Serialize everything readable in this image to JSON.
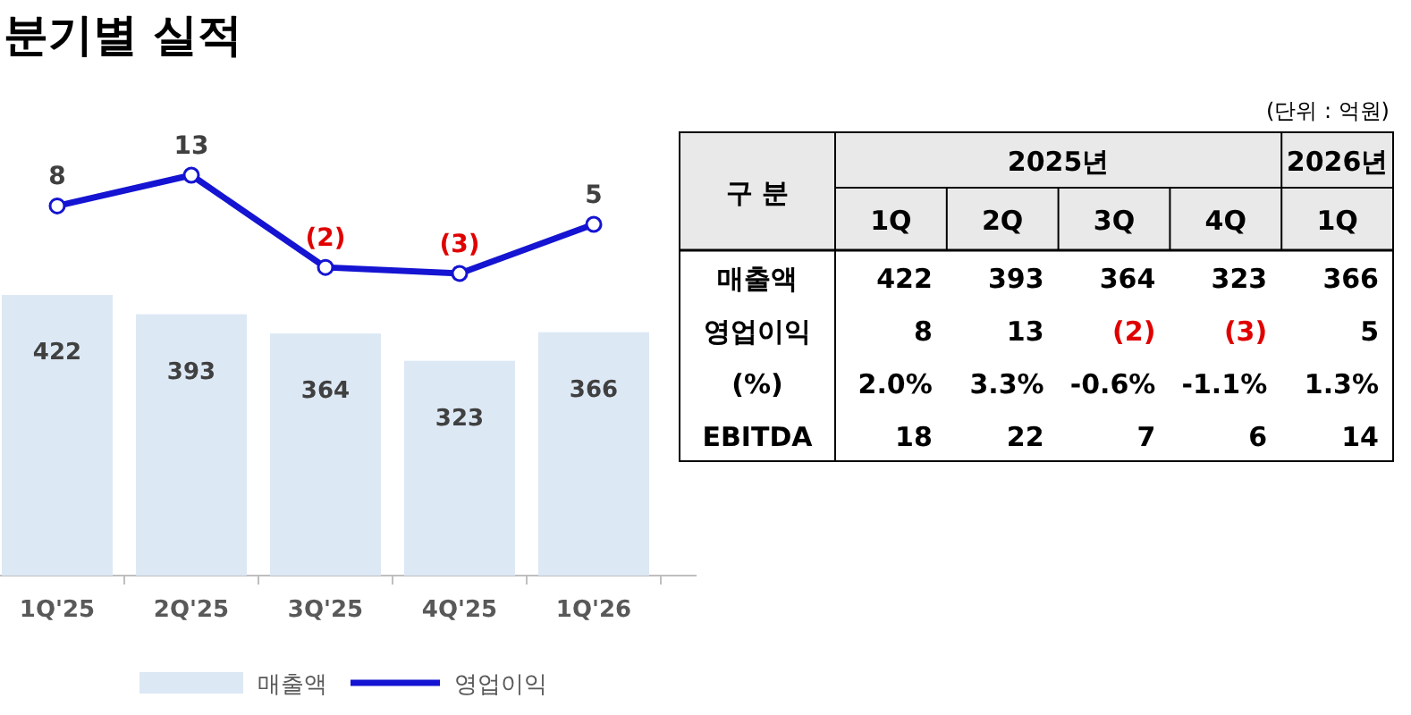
{
  "chart_data": [
    {
      "type": "bar",
      "categories": [
        "1Q'25",
        "2Q'25",
        "3Q'25",
        "4Q'25",
        "1Q'26"
      ],
      "data_labels": true,
      "legend": "bottom",
      "series": [
        {
          "name": "매출액",
          "color": "#dde8f5",
          "values": [
            422,
            393,
            364,
            323,
            366
          ]
        }
      ]
    },
    {
      "type": "line",
      "title": "분기별 실적",
      "categories": [
        null,
        null,
        null,
        null,
        null
      ],
      "legend": "bottom",
      "marker": "circle",
      "series": [
        {
          "name": "영업이익",
          "color": "#1414d2",
          "values": [
            8,
            13,
            -2,
            -3,
            5
          ],
          "value_labels": [
            "8",
            "13",
            "(2)",
            "(3)",
            "5"
          ]
        }
      ]
    },
    {
      "type": "heatmap",
      "annotations": [
        "(단위 : 억원)",
        "구 분",
        "2025년",
        "2026년"
      ],
      "categories": [
        "1Q",
        "2Q",
        "3Q",
        "4Q",
        "1Q"
      ],
      "y_categories": [
        "매출액",
        "영업이익",
        "(%)",
        "EBITDA"
      ],
      "cells": [
        [
          422,
          393,
          364,
          323,
          366
        ],
        [
          8,
          13,
          -2,
          -3,
          5
        ],
        [
          2.0,
          3.3,
          -0.6,
          -1.1,
          1.3
        ],
        [
          18,
          22,
          7,
          6,
          14
        ]
      ],
      "cell_labels": [
        [
          "422",
          "393",
          "364",
          "323",
          "366"
        ],
        [
          "8",
          "13",
          "(2)",
          "(3)",
          "5"
        ],
        [
          "2.0%",
          "3.3%",
          "-0.6%",
          "-1.1%",
          "1.3%"
        ],
        [
          "18",
          "22",
          "7",
          "6",
          "14"
        ]
      ]
    }
  ]
}
